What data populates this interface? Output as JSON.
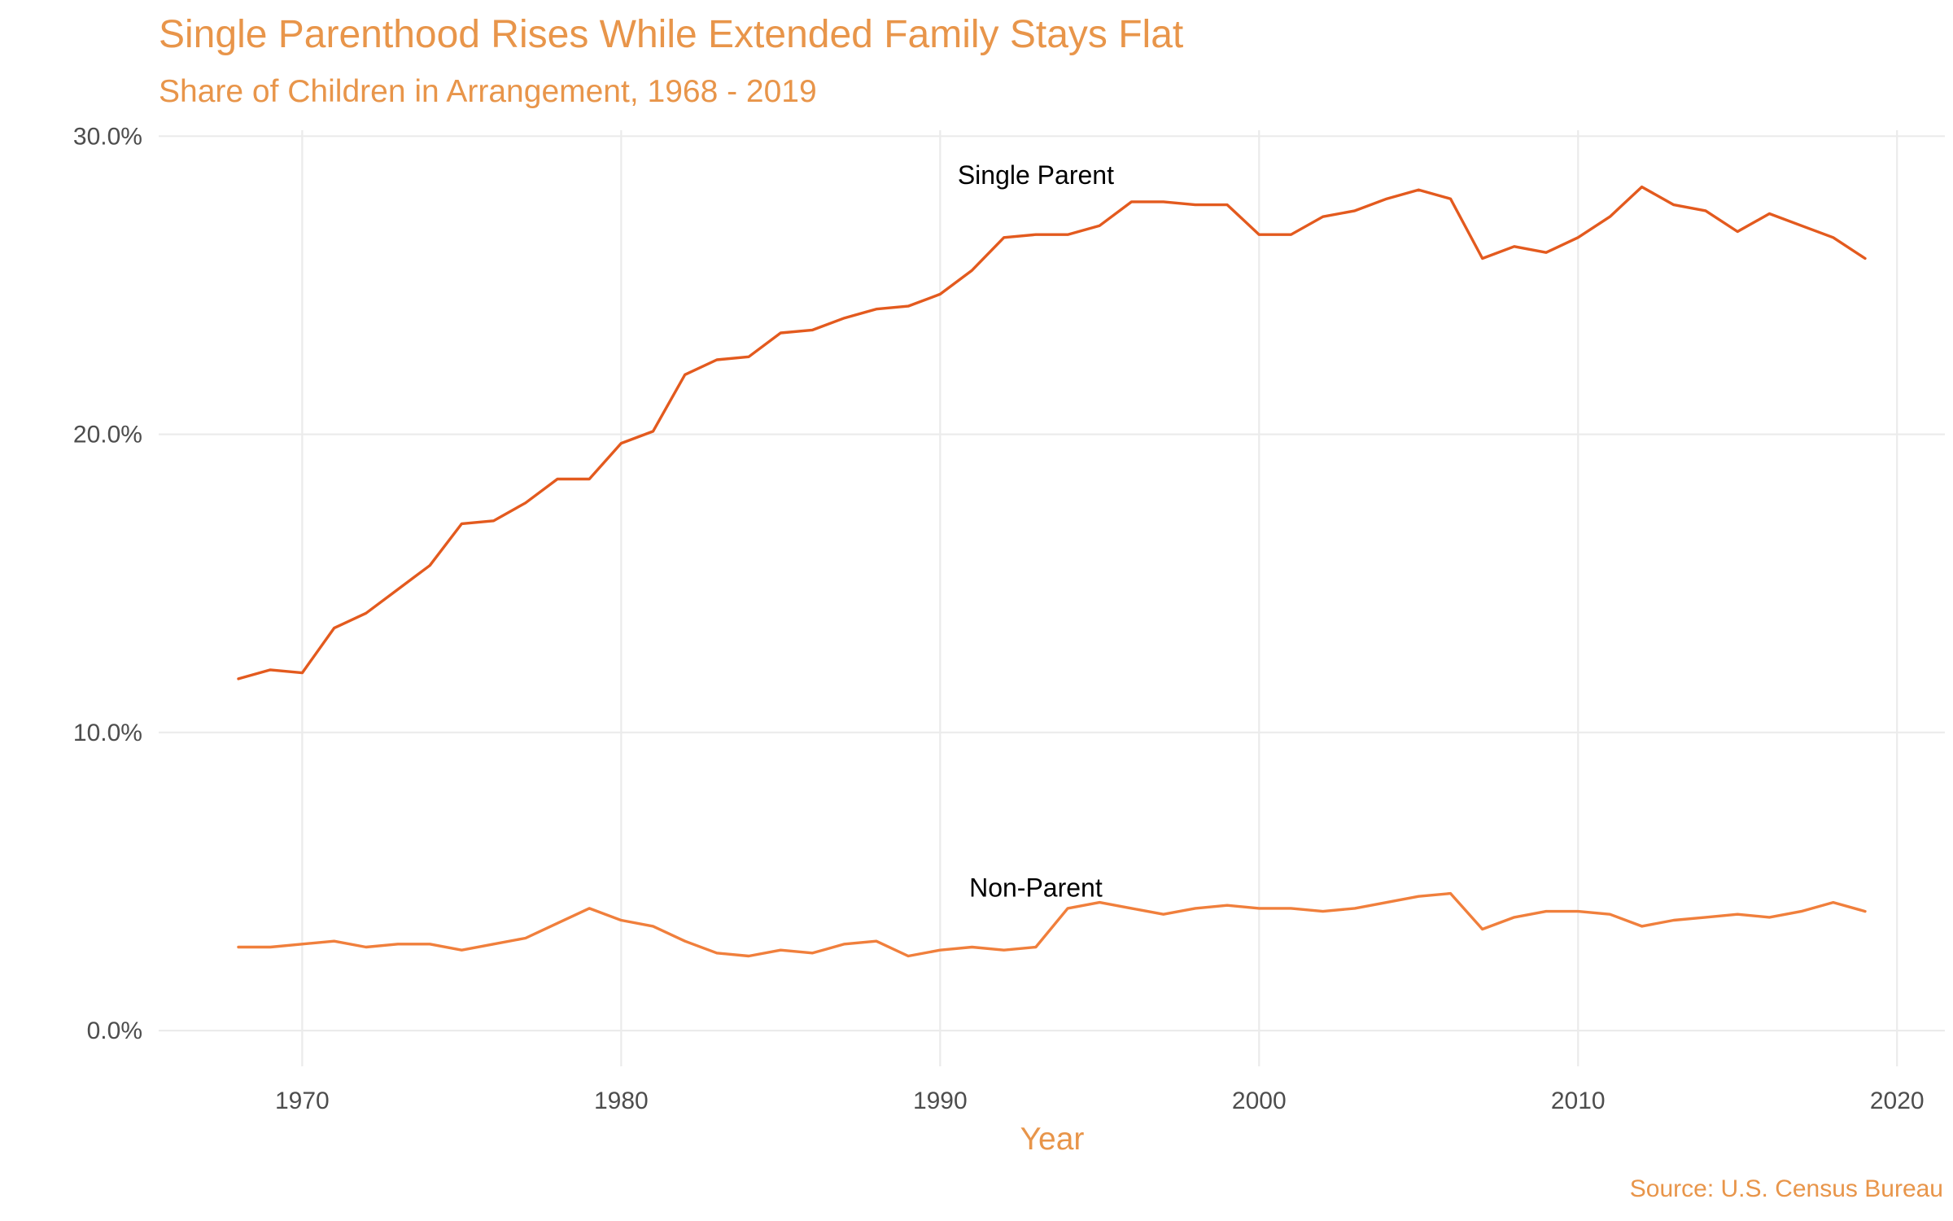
{
  "title": "Single Parenthood Rises While Extended Family Stays Flat",
  "subtitle": "Share of Children in Arrangement, 1968 - 2019",
  "caption": "Source: U.S. Census Bureau",
  "colors": {
    "title": "#E8954A",
    "single_parent": "#E35A1E",
    "non_parent": "#F07F3C",
    "grid": "#EBEBEB"
  },
  "chart_data": {
    "type": "line",
    "xlabel": "Year",
    "ylabel": "",
    "xlim": [
      1965.5,
      2021.5
    ],
    "ylim": [
      -1.2,
      30.2
    ],
    "x_ticks": [
      1970,
      1980,
      1990,
      2000,
      2010,
      2020
    ],
    "x_tick_labels": [
      "1970",
      "1980",
      "1990",
      "2000",
      "2010",
      "2020"
    ],
    "y_ticks": [
      0,
      10,
      20,
      30
    ],
    "y_tick_labels": [
      "0.0%",
      "10.0%",
      "20.0%",
      "30.0%"
    ],
    "grid": true,
    "legend": "none",
    "x": [
      1968,
      1969,
      1970,
      1971,
      1972,
      1973,
      1974,
      1975,
      1976,
      1977,
      1978,
      1979,
      1980,
      1981,
      1982,
      1983,
      1984,
      1985,
      1986,
      1987,
      1988,
      1989,
      1990,
      1991,
      1992,
      1993,
      1994,
      1995,
      1996,
      1997,
      1998,
      1999,
      2000,
      2001,
      2002,
      2003,
      2004,
      2005,
      2006,
      2007,
      2008,
      2009,
      2010,
      2011,
      2012,
      2013,
      2014,
      2015,
      2016,
      2017,
      2018,
      2019
    ],
    "series": [
      {
        "name": "Single Parent",
        "label_position": [
          1993,
          28.7
        ],
        "values": [
          11.8,
          12.1,
          12.0,
          13.5,
          14.0,
          14.8,
          15.6,
          17.0,
          17.1,
          17.7,
          18.5,
          18.5,
          19.7,
          20.1,
          22.0,
          22.5,
          22.6,
          23.4,
          23.5,
          23.9,
          24.2,
          24.3,
          24.7,
          25.5,
          26.6,
          26.7,
          26.7,
          27.0,
          27.8,
          27.8,
          27.7,
          27.7,
          26.7,
          26.7,
          27.3,
          27.5,
          27.9,
          28.2,
          27.9,
          25.9,
          26.3,
          26.1,
          26.6,
          27.3,
          28.3,
          27.7,
          27.5,
          26.8,
          27.4,
          27.0,
          26.6,
          25.9
        ]
      },
      {
        "name": "Non-Parent",
        "label_position": [
          1993,
          4.8
        ],
        "values": [
          2.8,
          2.8,
          2.9,
          3.0,
          2.8,
          2.9,
          2.9,
          2.7,
          2.9,
          3.1,
          3.6,
          4.1,
          3.7,
          3.5,
          3.0,
          2.6,
          2.5,
          2.7,
          2.6,
          2.9,
          3.0,
          2.5,
          2.7,
          2.8,
          2.7,
          2.8,
          4.1,
          4.3,
          4.1,
          3.9,
          4.1,
          4.2,
          4.1,
          4.1,
          4.0,
          4.1,
          4.3,
          4.5,
          4.6,
          3.4,
          3.8,
          4.0,
          4.0,
          3.9,
          3.5,
          3.7,
          3.8,
          3.9,
          3.8,
          4.0,
          4.3,
          4.0
        ]
      }
    ]
  }
}
